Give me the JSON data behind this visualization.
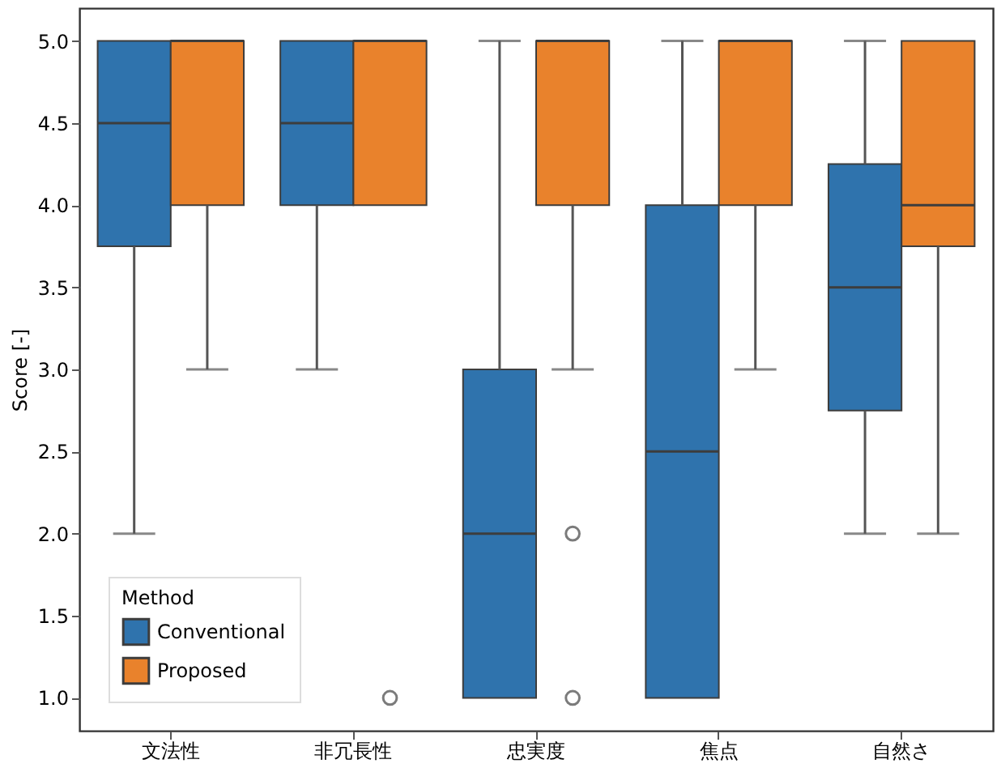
{
  "chart_data": {
    "type": "box",
    "ylabel": "Score [-]",
    "legend_title": "Method",
    "legend": "bottom left",
    "grid": false,
    "categories": [
      "文法性",
      "非冗長性",
      "忠実度",
      "焦点",
      "自然さ"
    ],
    "ylim": [
      0.8,
      5.2
    ],
    "yticks": [
      {
        "value": 1,
        "label": "1.0"
      },
      {
        "value": 1.5,
        "label": "1.5"
      },
      {
        "value": 2,
        "label": "2.0"
      },
      {
        "value": 2.5,
        "label": "2.5"
      },
      {
        "value": 3,
        "label": "3.0"
      },
      {
        "value": 3.5,
        "label": "3.5"
      },
      {
        "value": 4,
        "label": "4.0"
      },
      {
        "value": 4.5,
        "label": "4.5"
      },
      {
        "value": 5,
        "label": "5.0"
      }
    ],
    "series": [
      {
        "name": "Conventional",
        "color": "#2f73ad",
        "boxes": [
          {
            "low": 2,
            "q1": 3.75,
            "median": 4.5,
            "q3": 5,
            "high": 5
          },
          {
            "low": 3,
            "q1": 4,
            "median": 4.5,
            "q3": 5,
            "high": 5
          },
          {
            "low": 1,
            "q1": 1,
            "median": 2,
            "q3": 3,
            "high": 5
          },
          {
            "low": 1,
            "q1": 1,
            "median": 2.5,
            "q3": 4,
            "high": 5
          },
          {
            "low": 2,
            "q1": 2.75,
            "median": 3.5,
            "q3": 4.25,
            "high": 5
          }
        ]
      },
      {
        "name": "Proposed",
        "color": "#e9822c",
        "boxes": [
          {
            "low": 3,
            "q1": 4,
            "median": 5,
            "q3": 5,
            "high": 5
          },
          {
            "low": 4,
            "q1": 4,
            "median": 5,
            "q3": 5,
            "high": 5,
            "outliers": [
              1
            ]
          },
          {
            "low": 3,
            "q1": 4,
            "median": 5,
            "q3": 5,
            "high": 5,
            "outliers": [
              2,
              1
            ]
          },
          {
            "low": 3,
            "q1": 4,
            "median": 5,
            "q3": 5,
            "high": 5
          },
          {
            "low": 2,
            "q1": 3.75,
            "median": 4,
            "q3": 5,
            "high": 5
          }
        ]
      }
    ]
  }
}
